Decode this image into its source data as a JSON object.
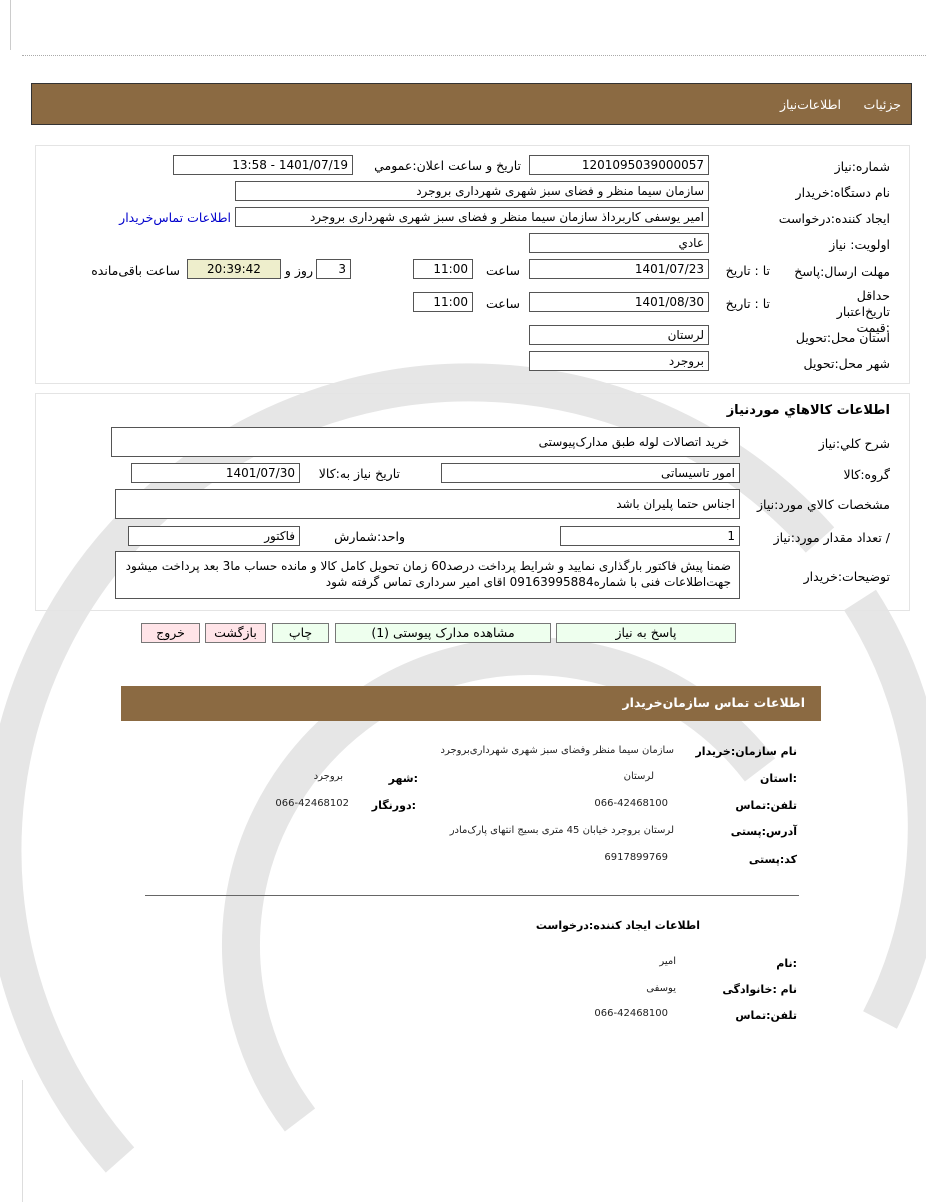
{
  "header": {
    "tab_details": "جزئیات",
    "tab_info": "اطلاعات‌نیاز"
  },
  "need": {
    "number_label": "شماره:نیاز",
    "number": "1201095039000057",
    "announce_label": "تاریخ و ساعت اعلان:عمومي",
    "announce": "1401/07/19 - 13:58",
    "buyer_label": "نام دستگاه:خریدار",
    "buyer": "سازمان سیما منظر و فضای سبز شهری شهرداری بروجرد",
    "creator_label": "ایجاد کننده:درخواست",
    "creator": "امیر یوسفی کاربرداذ سازمان سیما منظر و فضای سبز شهری شهرداری بروجرد",
    "contact_link": "اطلاعات تماس‌خریدار",
    "priority_label": "اولویت: نیاز",
    "priority": "عادي",
    "deadline_label": "مهلت ارسال:پاسخ",
    "to_date_label": "تا : تاریخ",
    "deadline_date": "1401/07/23",
    "time_label": "ساعت",
    "deadline_time": "11:00",
    "days": "3",
    "days_label": "روز و",
    "remaining": "20:39:42",
    "remaining_label": "ساعت باقی‌مانده",
    "validity_label": "حداقل تاریخ‌اعتبار :قیمت",
    "validity_date": "1401/08/30",
    "validity_time": "11:00",
    "province_label": "استان محل:تحویل",
    "province": "لرستان",
    "city_label": "شهر محل:تحویل",
    "city": "بروجرد"
  },
  "goods": {
    "title": "اطلاعات كالاهاي موردنياز",
    "desc_label": "شرح كلي:نياز",
    "desc": "خرید اتصالات لوله طبق مدارک‌پیوستی",
    "group_label": "گروه:کالا",
    "group": "امور تاسیساتی",
    "need_date_label": "تاریخ نیاز به:کالا",
    "need_date": "1401/07/30",
    "spec_label": "مشخصات كالاي مورد:نياز",
    "spec": "اجناس حتما پلیران باشد",
    "qty_label": "/ تعداد مقدار مورد:نیاز",
    "qty": "1",
    "unit_label": "واحد:شمارش",
    "unit": "فاکتور",
    "notes_label": "توضیحات:خریدار",
    "notes": "ضمنا پیش فاکتور بارگذاری نمایید و شرایط پرداخت درصد60 زمان تحویل کامل کالا و مانده حساب ما3 بعد پرداخت میشود جهت‌اطلاعات فنی با شماره09163995884 اقای امیر سرداری تماس گرفته شود"
  },
  "buttons": {
    "reply": "پاسخ به نیاز",
    "docs": "مشاهده مدارک پیوستی (1)",
    "print": "چاپ",
    "back": "بازگشت",
    "exit": "خروج"
  },
  "contact": {
    "title": "اطلاعات  تماس سازمان‌خریدار",
    "org_label": "نام سازمان:خریدار",
    "org": "سازمان سیما منظر وفضای سبز شهری شهرداری‌بروجرد",
    "province_label": ":استان",
    "province": "لرستان",
    "city_label": ":شهر",
    "city": "بروجرد",
    "phone_label": "تلفن:تماس",
    "phone": "066-42468100",
    "fax_label": ":دورنگار",
    "fax": "066-42468102",
    "address_label": "آدرس:پستی",
    "address": "لرستان بروجرد خیابان 45 متری بسیج انتهای پارک‌مادر",
    "postal_label": "کد:پستی",
    "postal": "6917899769"
  },
  "creator": {
    "title": "اطلاعات ایجاد کننده:درخواست",
    "name_label": ":نام",
    "name": "امیر",
    "family_label": "نام :خانوادگی",
    "family": "یوسفی",
    "phone_label": "تلفن:تماس",
    "phone": "066-42468100"
  },
  "colors": {
    "bar": "#8B6A42",
    "timer_bg": "#EEEECC",
    "green_btn": "#EEFFEE",
    "pink_btn": "#FFE4E8",
    "link": "#0000CC"
  }
}
